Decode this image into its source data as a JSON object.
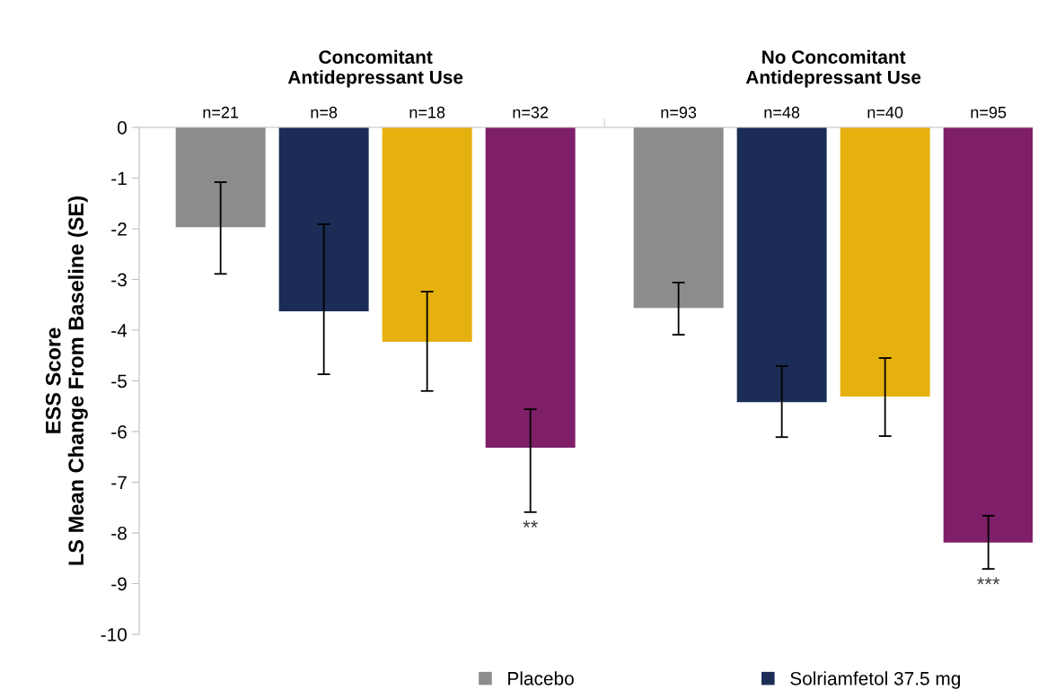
{
  "chart_data": {
    "type": "bar",
    "ylabel": "ESS Score\nLS Mean Change From Baseline (SE)",
    "categories": [
      "Concomitant\nAntidepressant Use",
      "No Concomitant\nAntidepressant Use"
    ],
    "series": [
      {
        "name": "Placebo",
        "color": "#8c8c8c",
        "values": [
          -1.97,
          -3.56
        ],
        "errors": [
          [
            -2.89,
            -1.08
          ],
          [
            -4.09,
            -3.06
          ]
        ]
      },
      {
        "name": "Solriamfetol 37.5 mg",
        "color": "#1b2d56",
        "values": [
          -3.63,
          -5.42
        ],
        "errors": [
          [
            -4.87,
            -1.91
          ],
          [
            -6.11,
            -4.71
          ]
        ]
      },
      {
        "color": "#e6b10e",
        "values": [
          -4.23,
          -5.31
        ],
        "errors": [
          [
            -5.2,
            -3.24
          ],
          [
            -6.09,
            -4.55
          ]
        ]
      },
      {
        "color": "#7f1f6a",
        "values": [
          -6.32,
          -8.19
        ],
        "errors": [
          [
            -7.59,
            -5.56
          ],
          [
            -8.71,
            -7.66
          ]
        ]
      }
    ],
    "annotations": [
      "n=21",
      "n=8",
      "n=18",
      "n=32",
      "n=93",
      "n=48",
      "n=40",
      "n=95",
      "**",
      "***"
    ],
    "ylim": [
      -10,
      0
    ],
    "yticks": [
      -10,
      -9,
      -8,
      -7,
      -6,
      -5,
      -4,
      -3,
      -2,
      -1,
      0
    ],
    "grid": false,
    "legend": "bottom"
  }
}
